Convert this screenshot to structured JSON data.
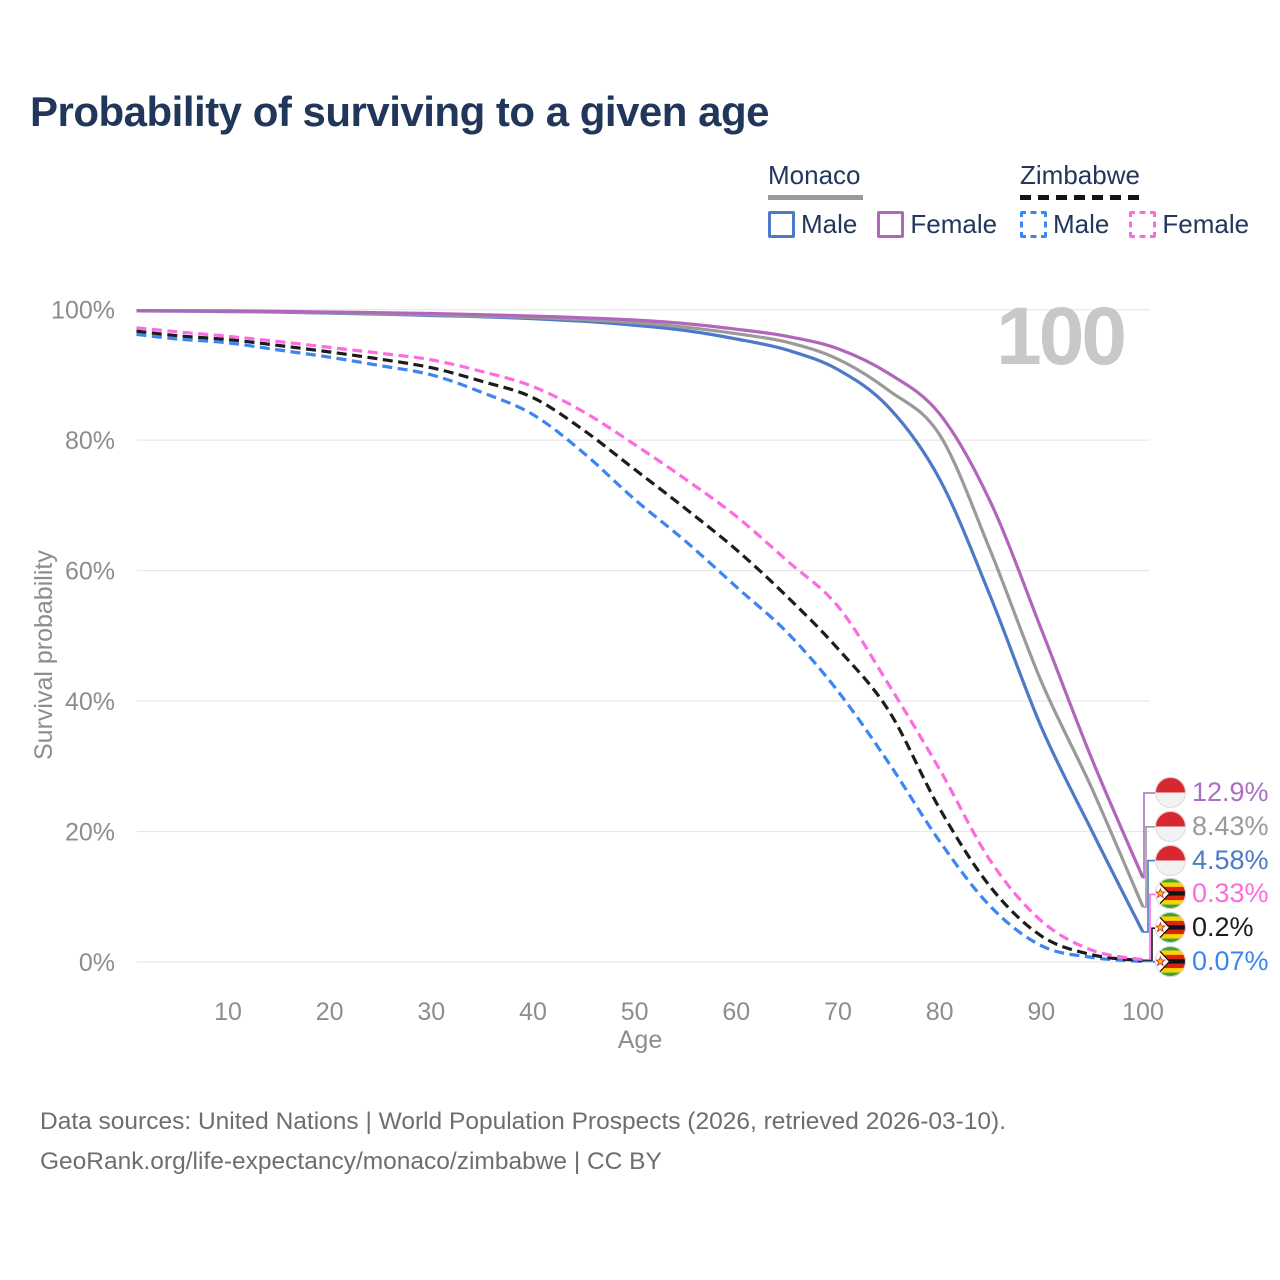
{
  "title": "Probability of surviving to a given age",
  "watermark": "100",
  "legend": {
    "groups": [
      {
        "country": "Monaco",
        "line_style": "solid",
        "underline_color": "#9a9a9a",
        "items": [
          {
            "label": "Male",
            "color": "#4d79c7"
          },
          {
            "label": "Female",
            "color": "#b266bb"
          }
        ]
      },
      {
        "country": "Zimbabwe",
        "line_style": "dashed",
        "underline_color": "#141414",
        "items": [
          {
            "label": "Male",
            "color": "#3d85f1"
          },
          {
            "label": "Female",
            "color": "#fc6ce0"
          }
        ]
      }
    ]
  },
  "chart_data": {
    "type": "line",
    "title": "Probability of surviving to a given age",
    "xlabel": "Age",
    "ylabel": "Survival probability",
    "xlim": [
      1,
      100
    ],
    "ylim": [
      0,
      100
    ],
    "grid": "horizontal",
    "x_ticks": [
      10,
      20,
      30,
      40,
      50,
      60,
      70,
      80,
      90,
      100
    ],
    "y_ticks": [
      0,
      20,
      40,
      60,
      80,
      100
    ],
    "x": [
      1,
      5,
      10,
      15,
      20,
      25,
      30,
      35,
      40,
      45,
      50,
      55,
      60,
      65,
      70,
      75,
      80,
      85,
      90,
      95,
      100
    ],
    "series": [
      {
        "name": "Zimbabwe Male",
        "country": "Zimbabwe",
        "sex": "Male",
        "color": "#3d85f1",
        "dash": true,
        "values": [
          96.2,
          95.5,
          94.9,
          93.8,
          92.7,
          91.4,
          90.0,
          87.3,
          83.9,
          78.0,
          70.9,
          64.5,
          57.5,
          50.5,
          41.5,
          30.5,
          18.5,
          8.5,
          2.5,
          0.7,
          0.07
        ]
      },
      {
        "name": "Zimbabwe All",
        "country": "Zimbabwe",
        "sex": "All",
        "color": "#1c1c1c",
        "dash": true,
        "values": [
          96.7,
          96.0,
          95.4,
          94.5,
          93.5,
          92.4,
          91.1,
          89.0,
          86.5,
          81.5,
          75.5,
          69.5,
          63.2,
          56.0,
          48.0,
          38.5,
          23.5,
          11.5,
          4.0,
          1.1,
          0.2
        ]
      },
      {
        "name": "Zimbabwe Female",
        "country": "Zimbabwe",
        "sex": "Female",
        "color": "#fc6ce0",
        "dash": true,
        "values": [
          97.2,
          96.6,
          95.9,
          95.1,
          94.2,
          93.3,
          92.3,
          90.5,
          88.2,
          84.3,
          79.3,
          74.0,
          68.3,
          61.5,
          54.5,
          42.5,
          29.5,
          15.5,
          6.3,
          1.8,
          0.33
        ]
      },
      {
        "name": "Monaco Male",
        "country": "Monaco",
        "sex": "Male",
        "color": "#4d79c7",
        "dash": false,
        "values": [
          99.8,
          99.75,
          99.7,
          99.6,
          99.45,
          99.3,
          99.1,
          98.9,
          98.6,
          98.2,
          97.6,
          96.8,
          95.5,
          93.8,
          90.8,
          85.0,
          74.0,
          56.0,
          36.0,
          20.0,
          4.58
        ]
      },
      {
        "name": "Monaco All",
        "country": "Monaco",
        "sex": "All",
        "color": "#9a9a9a",
        "dash": false,
        "values": [
          99.82,
          99.8,
          99.75,
          99.66,
          99.5,
          99.38,
          99.2,
          99.0,
          98.8,
          98.45,
          98.0,
          97.3,
          96.3,
          95.0,
          92.4,
          87.6,
          80.8,
          63.0,
          43.0,
          26.5,
          8.43
        ]
      },
      {
        "name": "Monaco Female",
        "country": "Monaco",
        "sex": "Female",
        "color": "#b266bb",
        "dash": false,
        "values": [
          99.85,
          99.83,
          99.8,
          99.72,
          99.62,
          99.52,
          99.4,
          99.22,
          99.0,
          98.75,
          98.4,
          97.85,
          97.0,
          95.9,
          94.0,
          90.2,
          84.0,
          70.5,
          51.0,
          31.0,
          12.9
        ]
      }
    ],
    "end_labels": [
      {
        "text": "12.9%",
        "value": 12.9,
        "color": "#ab6fc4",
        "flag": "monaco",
        "series": "Monaco Female"
      },
      {
        "text": "8.43%",
        "value": 8.43,
        "color": "#9a9a9a",
        "flag": "monaco",
        "series": "Monaco All"
      },
      {
        "text": "4.58%",
        "value": 4.58,
        "color": "#4d79c7",
        "flag": "monaco",
        "series": "Monaco Male"
      },
      {
        "text": "0.33%",
        "value": 0.33,
        "color": "#fc6ce0",
        "flag": "zimbabwe",
        "series": "Zimbabwe Female"
      },
      {
        "text": "0.2%",
        "value": 0.2,
        "color": "#1c1c1c",
        "flag": "zimbabwe",
        "series": "Zimbabwe All"
      },
      {
        "text": "0.07%",
        "value": 0.07,
        "color": "#3d85f1",
        "flag": "zimbabwe",
        "series": "Zimbabwe Male"
      }
    ],
    "legend_position": "top-right"
  },
  "footer": {
    "line1": "Data sources: United Nations | World Population Prospects (2026, retrieved 2026-03-10).",
    "line2": "GeoRank.org/life-expectancy/monaco/zimbabwe | CC BY"
  }
}
